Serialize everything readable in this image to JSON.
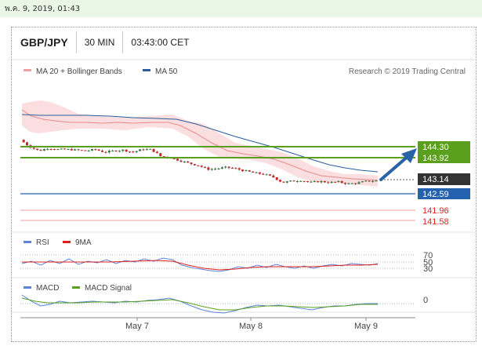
{
  "timestamp": "พ.ค. 9, 2019, 01:43",
  "header": {
    "pair": "GBP/JPY",
    "timeframe": "30 MIN",
    "time": "03:43:00 CET"
  },
  "legend": {
    "ma20": "MA 20 + Bollinger Bands",
    "ma50": "MA 50",
    "credit": "Research © 2019 Trading Central"
  },
  "colors": {
    "green": "#5aa01e",
    "blue": "#2462b0",
    "red": "#e8545a",
    "dark": "#333333",
    "ma20": "#e88a8a",
    "ma50": "#2a5d9a"
  },
  "chart_data": [
    {
      "type": "candlestick",
      "title": "GBP/JPY",
      "x_ticks": [
        "May 7",
        "May 8",
        "May 9"
      ],
      "ylim": [
        141.2,
        145.0
      ],
      "series": [
        {
          "name": "MA 20 + Bollinger Bands"
        },
        {
          "name": "MA 50"
        }
      ],
      "price_path": [
        144.55,
        144.3,
        144.15,
        144.25,
        144.2,
        144.2,
        144.18,
        144.15,
        144.2,
        144.1,
        144.15,
        144.18,
        144.1,
        144.2,
        144.2,
        143.95,
        143.9,
        143.8,
        143.7,
        143.62,
        143.48,
        143.5,
        143.55,
        143.5,
        143.42,
        143.35,
        143.3,
        143.2,
        143.0,
        143.05,
        143.08,
        143.0,
        143.04,
        143.0,
        143.02,
        142.95,
        142.98,
        143.05,
        143.06
      ],
      "levels": [
        {
          "label": "144.30",
          "value": 144.3,
          "style": "green-box"
        },
        {
          "label": "143.92",
          "value": 143.92,
          "style": "green-box"
        },
        {
          "label": "143.14",
          "value": 143.14,
          "style": "dark-box"
        },
        {
          "label": "142.59",
          "value": 142.59,
          "style": "blue-box"
        },
        {
          "label": "141.96",
          "value": 141.96,
          "style": "red-text"
        },
        {
          "label": "141.58",
          "value": 141.58,
          "style": "red-text"
        }
      ]
    },
    {
      "type": "line",
      "title": "RSI",
      "series": [
        {
          "name": "RSI",
          "color": "#5b84d8"
        },
        {
          "name": "9MA",
          "color": "#e02020"
        }
      ],
      "y_ticks": [
        "70",
        "50",
        "30"
      ]
    },
    {
      "type": "line",
      "title": "MACD",
      "series": [
        {
          "name": "MACD",
          "color": "#5b84d8"
        },
        {
          "name": "MACD Signal",
          "color": "#5aa01e"
        }
      ],
      "y_ticks": [
        "0"
      ]
    }
  ]
}
